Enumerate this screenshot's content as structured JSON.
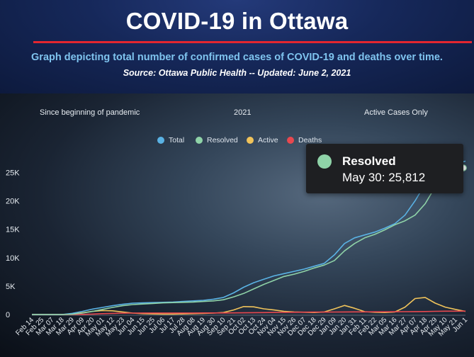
{
  "header": {
    "title": "COVID-19 in Ottawa",
    "subtitle": "Graph depicting total number of confirmed cases of COVID-19 and deaths over time.",
    "source": "Source:  Ottawa Public Health -- Updated:  June 2, 2021"
  },
  "tabs": [
    {
      "label": "Since beginning of pandemic"
    },
    {
      "label": "2021"
    },
    {
      "label": "Active Cases Only"
    }
  ],
  "colors": {
    "total": "#5ab2e4",
    "resolved": "#8fd3a8",
    "active": "#f0c35a",
    "deaths": "#e8484f"
  },
  "tooltip": {
    "series": "Resolved",
    "text": "May 30: 25,812"
  },
  "chart_data": {
    "type": "line",
    "title": "COVID-19 in Ottawa",
    "ylim": [
      0,
      27500
    ],
    "yticks": [
      {
        "value": 0,
        "label": "0"
      },
      {
        "value": 5000,
        "label": "5K"
      },
      {
        "value": 10000,
        "label": "10K"
      },
      {
        "value": 15000,
        "label": "15K"
      },
      {
        "value": 20000,
        "label": "20K"
      },
      {
        "value": 25000,
        "label": "25K"
      }
    ],
    "x_tick_labels": [
      "Feb 14",
      "Feb 25",
      "Mar 07",
      "Mar 18",
      "Mar 29",
      "Apr 09",
      "Apr 20",
      "May 01",
      "May 12",
      "May 23",
      "Jun 04",
      "Jun 15",
      "Jun 25",
      "Jul 06",
      "Jul 17",
      "Jul 28",
      "Aug 08",
      "Aug 19",
      "Aug 30",
      "Sep 10",
      "Sep 21",
      "Oct 02",
      "Oct 13",
      "Oct 24",
      "Nov 04",
      "Nov 15",
      "Nov 26",
      "Dec 07",
      "Dec 18",
      "Dec 29",
      "Jan 09",
      "Jan 20",
      "Jan 31",
      "Feb 11",
      "Feb 22",
      "Mar 05",
      "Mar 16",
      "Mar 27",
      "Apr 07",
      "Apr 18",
      "Apr 29",
      "May 10",
      "May 21",
      "Jun 1"
    ],
    "legend": [
      "Total",
      "Resolved",
      "Active",
      "Deaths"
    ],
    "legend_position": "top-center",
    "grid": false,
    "series": [
      {
        "name": "Total",
        "values": [
          0,
          0,
          0,
          0,
          200,
          550,
          950,
          1250,
          1550,
          1800,
          2000,
          2050,
          2100,
          2150,
          2200,
          2300,
          2400,
          2500,
          2700,
          3000,
          3800,
          4800,
          5600,
          6200,
          6800,
          7200,
          7600,
          8000,
          8500,
          9000,
          10500,
          12500,
          13500,
          14000,
          14500,
          15200,
          16000,
          17500,
          20000,
          23000,
          25000,
          26000,
          26500,
          27000
        ]
      },
      {
        "name": "Resolved",
        "values": [
          0,
          0,
          0,
          0,
          50,
          250,
          550,
          900,
          1250,
          1550,
          1750,
          1850,
          1950,
          2050,
          2100,
          2150,
          2200,
          2300,
          2400,
          2600,
          3100,
          3700,
          4500,
          5300,
          6000,
          6700,
          7100,
          7600,
          8200,
          8700,
          9500,
          11200,
          12500,
          13500,
          14100,
          14900,
          15800,
          16500,
          17500,
          19500,
          22500,
          24500,
          25300,
          25812
        ]
      },
      {
        "name": "Active",
        "values": [
          0,
          0,
          0,
          0,
          100,
          300,
          550,
          700,
          650,
          450,
          250,
          150,
          100,
          80,
          80,
          100,
          150,
          200,
          250,
          350,
          800,
          1400,
          1350,
          1000,
          800,
          550,
          450,
          400,
          350,
          450,
          1000,
          1600,
          1100,
          500,
          400,
          350,
          450,
          1300,
          2800,
          3000,
          2000,
          1300,
          900,
          550
        ]
      },
      {
        "name": "Deaths",
        "values": [
          0,
          0,
          0,
          0,
          5,
          30,
          80,
          150,
          200,
          240,
          255,
          260,
          262,
          264,
          265,
          266,
          268,
          270,
          275,
          280,
          290,
          300,
          320,
          340,
          360,
          380,
          400,
          410,
          420,
          430,
          440,
          450,
          460,
          465,
          470,
          480,
          490,
          500,
          510,
          530,
          560,
          580,
          590,
          596
        ]
      }
    ]
  }
}
